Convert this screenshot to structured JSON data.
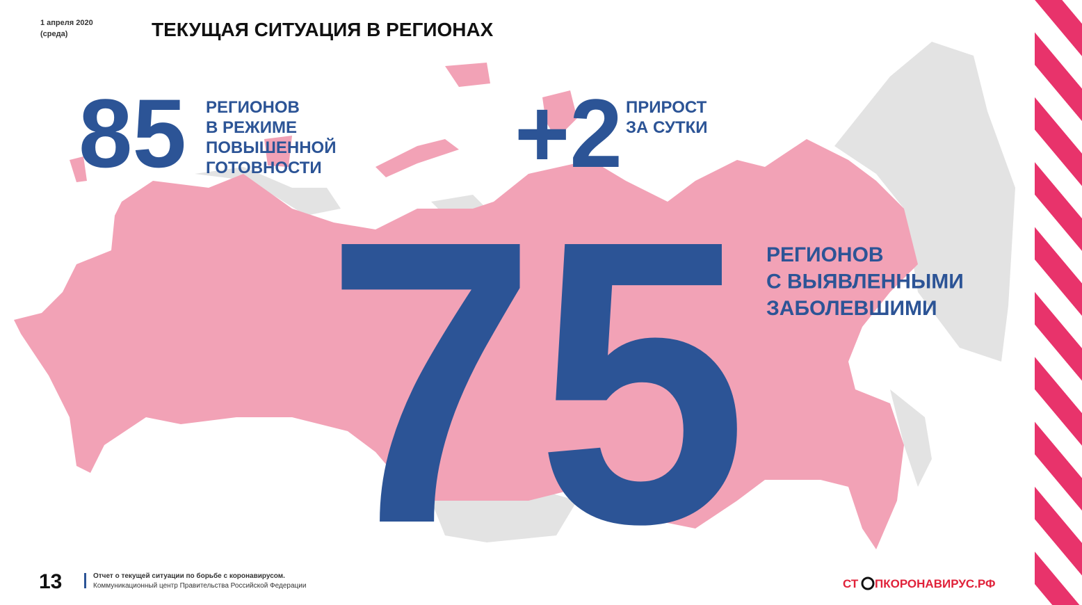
{
  "header": {
    "date": "1 апреля 2020",
    "weekday": "(среда)",
    "title": "ТЕКУЩАЯ СИТУАЦИЯ В РЕГИОНАХ"
  },
  "stats": [
    {
      "number": "85",
      "label": [
        "РЕГИОНОВ",
        "В РЕЖИМЕ",
        "ПОВЫШЕННОЙ",
        "ГОТОВНОСТИ"
      ]
    },
    {
      "number": "+2",
      "label": [
        "ПРИРОСТ",
        "ЗА СУТКИ"
      ]
    },
    {
      "number": "75",
      "label": [
        "РЕГИОНОВ",
        "С ВЫЯВЛЕННЫМИ",
        "ЗАБОЛЕВШИМИ"
      ]
    }
  ],
  "footer": {
    "page": "13",
    "report": "Отчет о текущей ситуации по борьбе с коронавирусом.",
    "center": "Коммуникационный центр Правительства Российской Федерации",
    "logo_left": "СТ",
    "logo_right": "ПКОРОНАВИРУС.РФ"
  }
}
